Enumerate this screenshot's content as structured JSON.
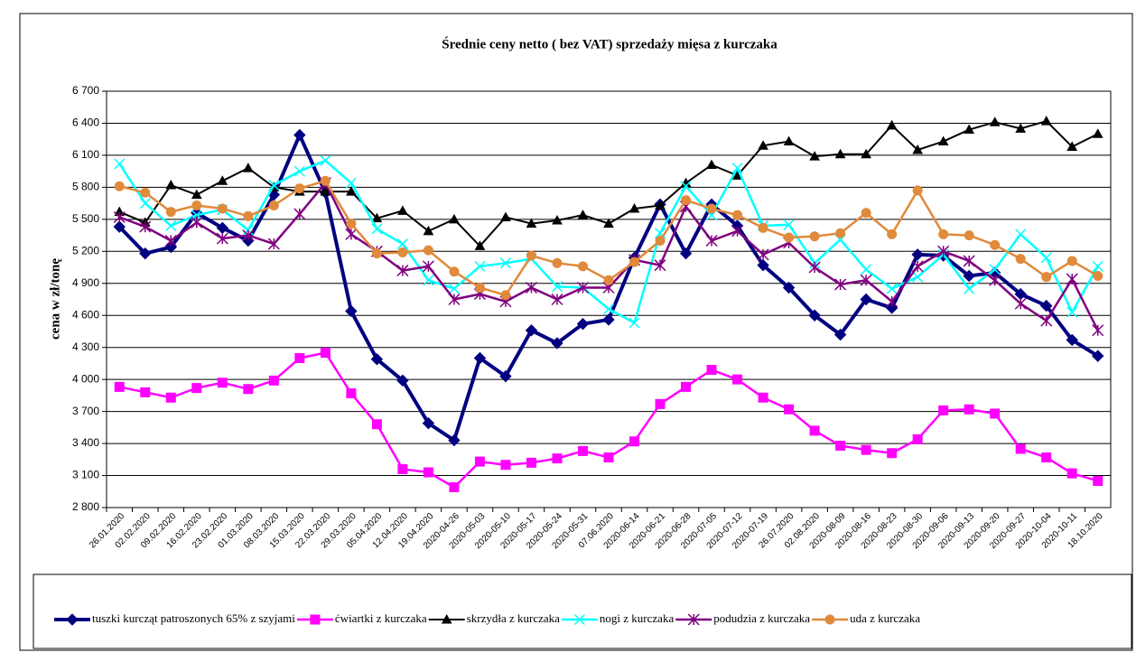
{
  "chart_data": {
    "type": "line",
    "title": "Średnie ceny netto ( bez VAT) sprzedaży mięsa z kurczaka",
    "y_label": "cena w zł/tonę",
    "categories": [
      "26.01.2020",
      "02.02.2020",
      "09.02.2020",
      "16.02.2020",
      "23.02.2020",
      "01.03.2020",
      "08.03.2020",
      "15.03.2020",
      "22.03.2020",
      "29.03.2020",
      "05.04.2020",
      "12.04.2020",
      "19.04.2020",
      "2020-04-26",
      "2020-05-03",
      "2020-05-10",
      "2020-05-17",
      "2020-05-24",
      "2020-05-31",
      "07.06.2020",
      "2020-06-14",
      "2020-06-21",
      "2020-06-28",
      "2020-07-05",
      "2020-07-12",
      "2020-07-19",
      "26.07.2020",
      "02.08.2020",
      "2020-08-09",
      "2020-08-16",
      "2020-08-23",
      "2020-08-30",
      "2020-09-06",
      "2020-09-13",
      "2020-09-20",
      "2020-09-27",
      "2020-10-04",
      "2020-10-11",
      "18.10.2020"
    ],
    "ylim": [
      2800,
      6700
    ],
    "yticks": [
      {
        "value": 2800,
        "label": "2 800"
      },
      {
        "value": 3100,
        "label": "3 100"
      },
      {
        "value": 3400,
        "label": "3 400"
      },
      {
        "value": 3700,
        "label": "3 700"
      },
      {
        "value": 4000,
        "label": "4 000"
      },
      {
        "value": 4300,
        "label": "4 300"
      },
      {
        "value": 4600,
        "label": "4 600"
      },
      {
        "value": 4900,
        "label": "4 900"
      },
      {
        "value": 5200,
        "label": "5 200"
      },
      {
        "value": 5500,
        "label": "5 500"
      },
      {
        "value": 5800,
        "label": "5 800"
      },
      {
        "value": 6100,
        "label": "6 100"
      },
      {
        "value": 6400,
        "label": "6 400"
      },
      {
        "value": 6700,
        "label": "6 700"
      }
    ],
    "grid": true,
    "legend": "bottom",
    "series": [
      {
        "name": "tuszki kurcząt patroszonych 65% z szyjami",
        "color": "#000080",
        "marker": "diamond",
        "width": 4,
        "values": [
          5430,
          5180,
          5240,
          5560,
          5420,
          5300,
          5730,
          6290,
          5750,
          4640,
          4190,
          3990,
          3590,
          3430,
          4200,
          4030,
          4460,
          4340,
          4520,
          4560,
          5140,
          5640,
          5180,
          5640,
          5440,
          5070,
          4860,
          4600,
          4420,
          4750,
          4670,
          5170,
          5160,
          4970,
          5000,
          4800,
          4690,
          4370,
          4220
        ]
      },
      {
        "name": "ćwiartki z kurczaka",
        "color": "#ff00ff",
        "marker": "square",
        "width": 2.5,
        "values": [
          3930,
          3880,
          3830,
          3920,
          3970,
          3910,
          3990,
          4200,
          4250,
          3870,
          3580,
          3160,
          3130,
          2990,
          3230,
          3200,
          3220,
          3260,
          3330,
          3270,
          3420,
          3770,
          3930,
          4090,
          4000,
          3830,
          3720,
          3520,
          3380,
          3340,
          3310,
          3440,
          3710,
          3720,
          3680,
          3350,
          3270,
          3120,
          3050
        ]
      },
      {
        "name": "skrzydła z kurczaka",
        "color": "#000000",
        "marker": "triangle",
        "width": 2,
        "values": [
          5570,
          5470,
          5820,
          5730,
          5860,
          5980,
          5800,
          5760,
          5760,
          5760,
          5510,
          5580,
          5390,
          5500,
          5250,
          5520,
          5460,
          5490,
          5540,
          5460,
          5600,
          5630,
          5840,
          6010,
          5910,
          6190,
          6230,
          6090,
          6110,
          6110,
          6380,
          6150,
          6230,
          6340,
          6410,
          6350,
          6420,
          6180,
          6300
        ]
      },
      {
        "name": "nogi z kurczaka",
        "color": "#00ffff",
        "marker": "x",
        "width": 2.5,
        "values": [
          6020,
          5650,
          5440,
          5540,
          5590,
          5400,
          5820,
          5950,
          6050,
          5840,
          5410,
          5270,
          4930,
          4850,
          5060,
          5090,
          5130,
          4870,
          4860,
          4660,
          4530,
          5370,
          5810,
          5540,
          5980,
          5440,
          5450,
          5090,
          5310,
          5030,
          4850,
          4960,
          5170,
          4850,
          5030,
          5360,
          5140,
          4630,
          5060
        ]
      },
      {
        "name": "podudzia z kurczaka",
        "color": "#800080",
        "marker": "star",
        "width": 2.5,
        "values": [
          5520,
          5430,
          5300,
          5470,
          5320,
          5350,
          5270,
          5550,
          5840,
          5360,
          5200,
          5020,
          5060,
          4750,
          4800,
          4730,
          4860,
          4750,
          4860,
          4860,
          5120,
          5070,
          5620,
          5300,
          5390,
          5170,
          5280,
          5050,
          4890,
          4930,
          4730,
          5060,
          5200,
          5110,
          4930,
          4710,
          4550,
          4940,
          4460
        ]
      },
      {
        "name": "uda z kurczaka",
        "color": "#e08a3c",
        "marker": "circle",
        "width": 2.5,
        "values": [
          5810,
          5750,
          5570,
          5630,
          5600,
          5530,
          5630,
          5790,
          5860,
          5460,
          5180,
          5190,
          5210,
          5010,
          4860,
          4790,
          5160,
          5090,
          5060,
          4930,
          5100,
          5300,
          5680,
          5600,
          5540,
          5420,
          5330,
          5340,
          5370,
          5560,
          5360,
          5770,
          5360,
          5350,
          5260,
          5130,
          4960,
          5110,
          4970
        ]
      }
    ]
  }
}
